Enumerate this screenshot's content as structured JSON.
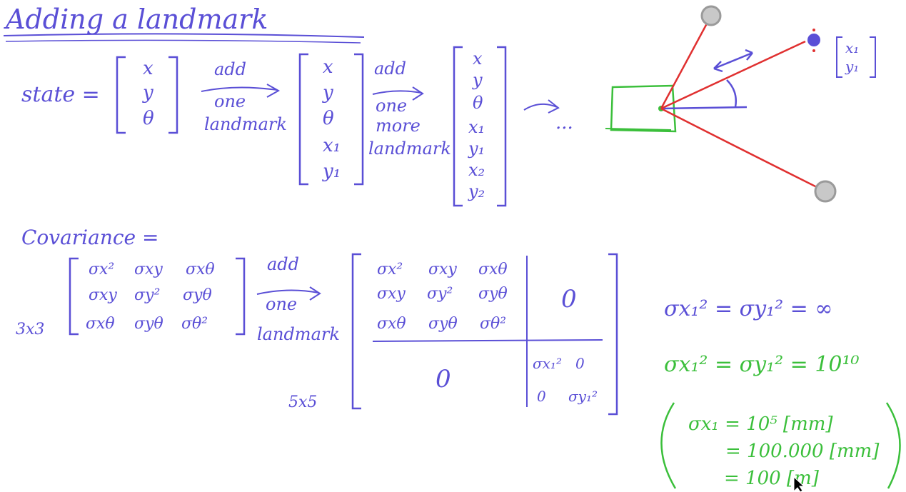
{
  "title": "Adding a landmark",
  "state": {
    "label": "state =",
    "vec3": [
      "x",
      "y",
      "θ"
    ],
    "vec5": [
      "x",
      "y",
      "θ",
      "x₁",
      "y₁"
    ],
    "vec7": [
      "x",
      "y",
      "θ",
      "x₁",
      "y₁",
      "x₂",
      "y₂"
    ],
    "arrow1": [
      "add",
      "one",
      "landmark"
    ],
    "arrow2": [
      "add",
      "one",
      "more",
      "landmark"
    ],
    "ellipsis": "..."
  },
  "landmark_vec": [
    "x₁",
    "y₁"
  ],
  "covariance": {
    "label": "Covariance =",
    "size3": "3x3",
    "size5": "5x5",
    "m3": [
      [
        "σx²",
        "σxy",
        "σxθ"
      ],
      [
        "σxy",
        "σy²",
        "σyθ"
      ],
      [
        "σxθ",
        "σyθ",
        "σθ²"
      ]
    ],
    "arrow": [
      "add",
      "one",
      "landmark"
    ],
    "zero": "0",
    "block": [
      [
        "σx₁²",
        "0"
      ],
      [
        "0",
        "σy₁²"
      ]
    ]
  },
  "notes": {
    "inf": "σx₁² = σy₁² = ∞",
    "big": "σx₁² = σy₁² = 10¹⁰",
    "line1": "σx₁ = 10⁵ [mm]",
    "line2": "= 100.000 [mm]",
    "line3": "= 100 [m]"
  },
  "colors": {
    "ink": "#5a4fd6",
    "red": "#e03030",
    "green": "#3bbf3b"
  }
}
